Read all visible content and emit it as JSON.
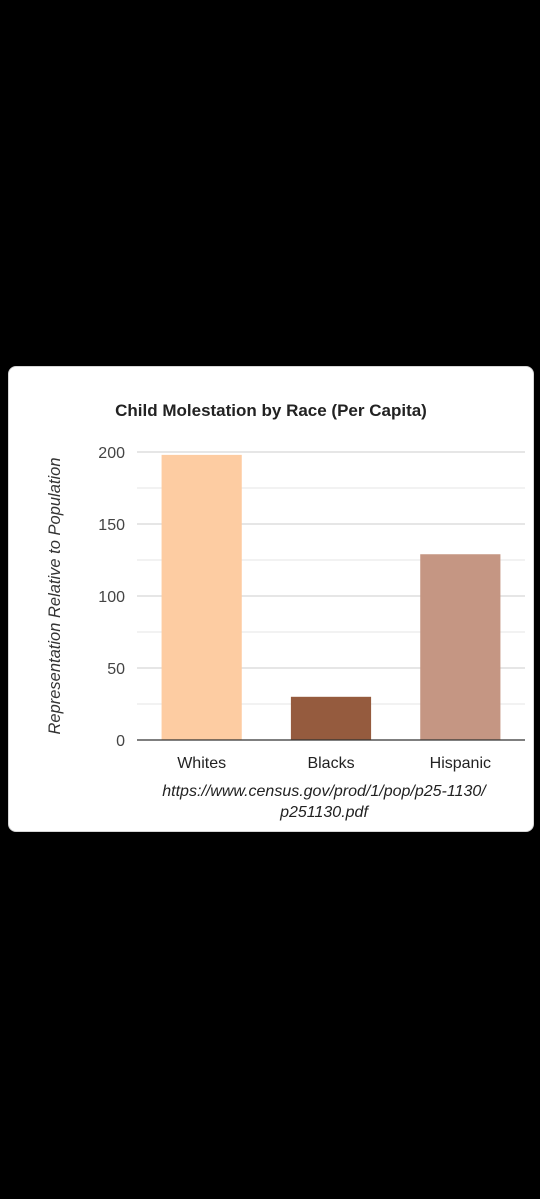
{
  "chart_data": {
    "type": "bar",
    "title": "Child Molestation by Race (Per Capita)",
    "ylabel": "Representation Relative to Population",
    "xlabel": "",
    "categories": [
      "Whites",
      "Blacks",
      "Hispanic"
    ],
    "values": [
      198,
      30,
      129
    ],
    "colors": [
      "#fdcca2",
      "#955b3e",
      "#c59683"
    ],
    "ylim": [
      0,
      200
    ],
    "yticks": [
      0,
      50,
      100,
      150,
      200
    ],
    "grid": true,
    "source": "https://www.census.gov/prod/1/pop/p25-1130/ p251130.pdf"
  }
}
